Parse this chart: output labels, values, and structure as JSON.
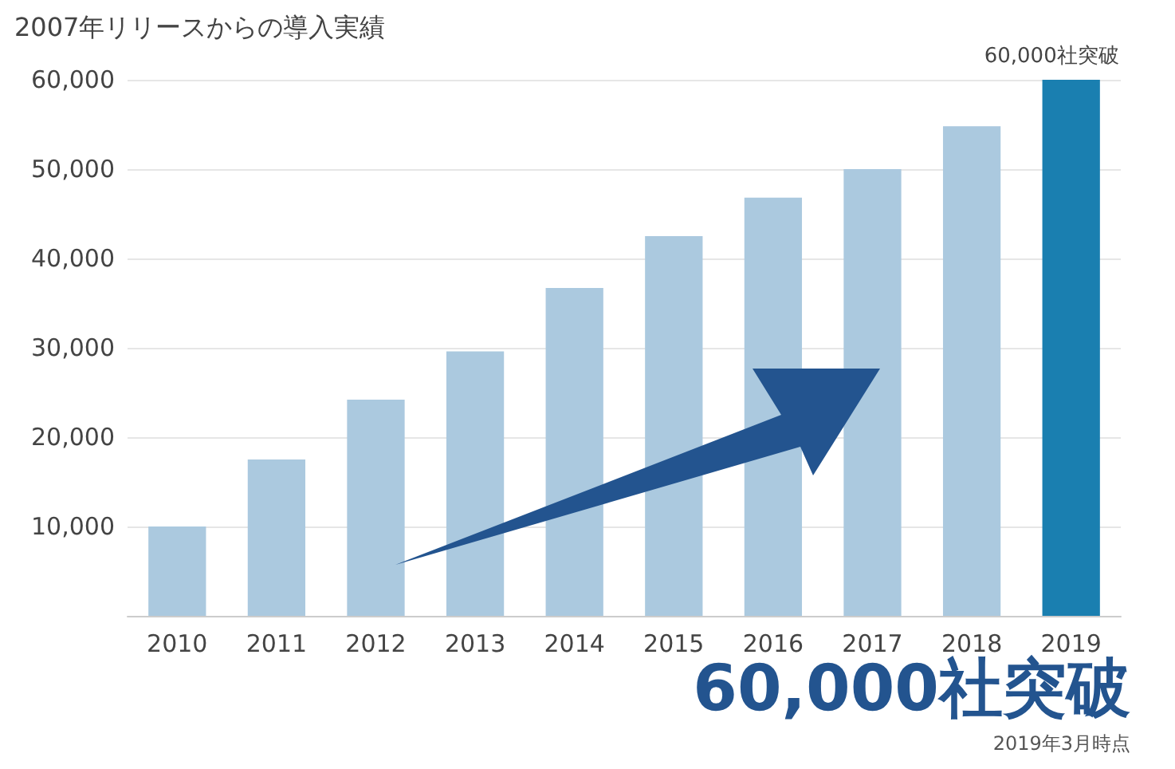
{
  "chart_data": {
    "type": "bar",
    "title": "2007年リリースからの導入実績",
    "categories": [
      "2010",
      "2011",
      "2012",
      "2013",
      "2014",
      "2015",
      "2016",
      "2017",
      "2018",
      "2019"
    ],
    "values": [
      10000,
      17500,
      24200,
      29600,
      36700,
      42500,
      46800,
      50000,
      54800,
      60000
    ],
    "colors": [
      "#abc9df",
      "#abc9df",
      "#abc9df",
      "#abc9df",
      "#abc9df",
      "#abc9df",
      "#abc9df",
      "#abc9df",
      "#abc9df",
      "#1a7fb0"
    ],
    "ylim": [
      0,
      60000
    ],
    "yticks": [
      {
        "value": 0,
        "label": null
      },
      {
        "value": 10000,
        "label": "10,000"
      },
      {
        "value": 20000,
        "label": "20,000"
      },
      {
        "value": 30000,
        "label": "30,000"
      },
      {
        "value": 40000,
        "label": "40,000"
      },
      {
        "value": 50000,
        "label": "50,000"
      },
      {
        "value": 60000,
        "label": "60,000"
      }
    ],
    "grid": "y",
    "annotations": [
      {
        "text": "60,000社突破",
        "x": "2019",
        "y": 60000
      },
      "60,000社突破",
      "2019年3月時点"
    ]
  }
}
